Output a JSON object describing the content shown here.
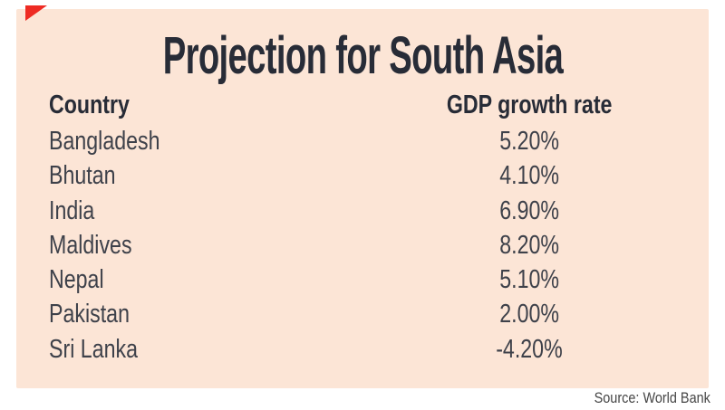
{
  "title": "Projection for South Asia",
  "table": {
    "country_header": "Country",
    "rate_header": "GDP growth rate",
    "rows": [
      {
        "country": "Bangladesh",
        "rate": "5.20%"
      },
      {
        "country": "Bhutan",
        "rate": "4.10%"
      },
      {
        "country": "India",
        "rate": "6.90%"
      },
      {
        "country": "Maldives",
        "rate": "8.20%"
      },
      {
        "country": "Nepal",
        "rate": "5.10%"
      },
      {
        "country": "Pakistan",
        "rate": "2.00%"
      },
      {
        "country": "Sri Lanka",
        "rate": "-4.20%"
      }
    ]
  },
  "source": "Source: World Bank",
  "colors": {
    "panel_bg": "#fce5d6",
    "heading_text": "#282c37",
    "body_text": "#3e414a",
    "source_text": "#464646",
    "corner_mark": "#ee2b23"
  },
  "chart_data": {
    "type": "table",
    "title": "Projection for South Asia",
    "columns": [
      "Country",
      "GDP growth rate"
    ],
    "categories": [
      "Bangladesh",
      "Bhutan",
      "India",
      "Maldives",
      "Nepal",
      "Pakistan",
      "Sri Lanka"
    ],
    "values": [
      5.2,
      4.1,
      6.9,
      8.2,
      5.1,
      2.0,
      -4.2
    ],
    "unit": "%",
    "source": "Source: World Bank"
  }
}
